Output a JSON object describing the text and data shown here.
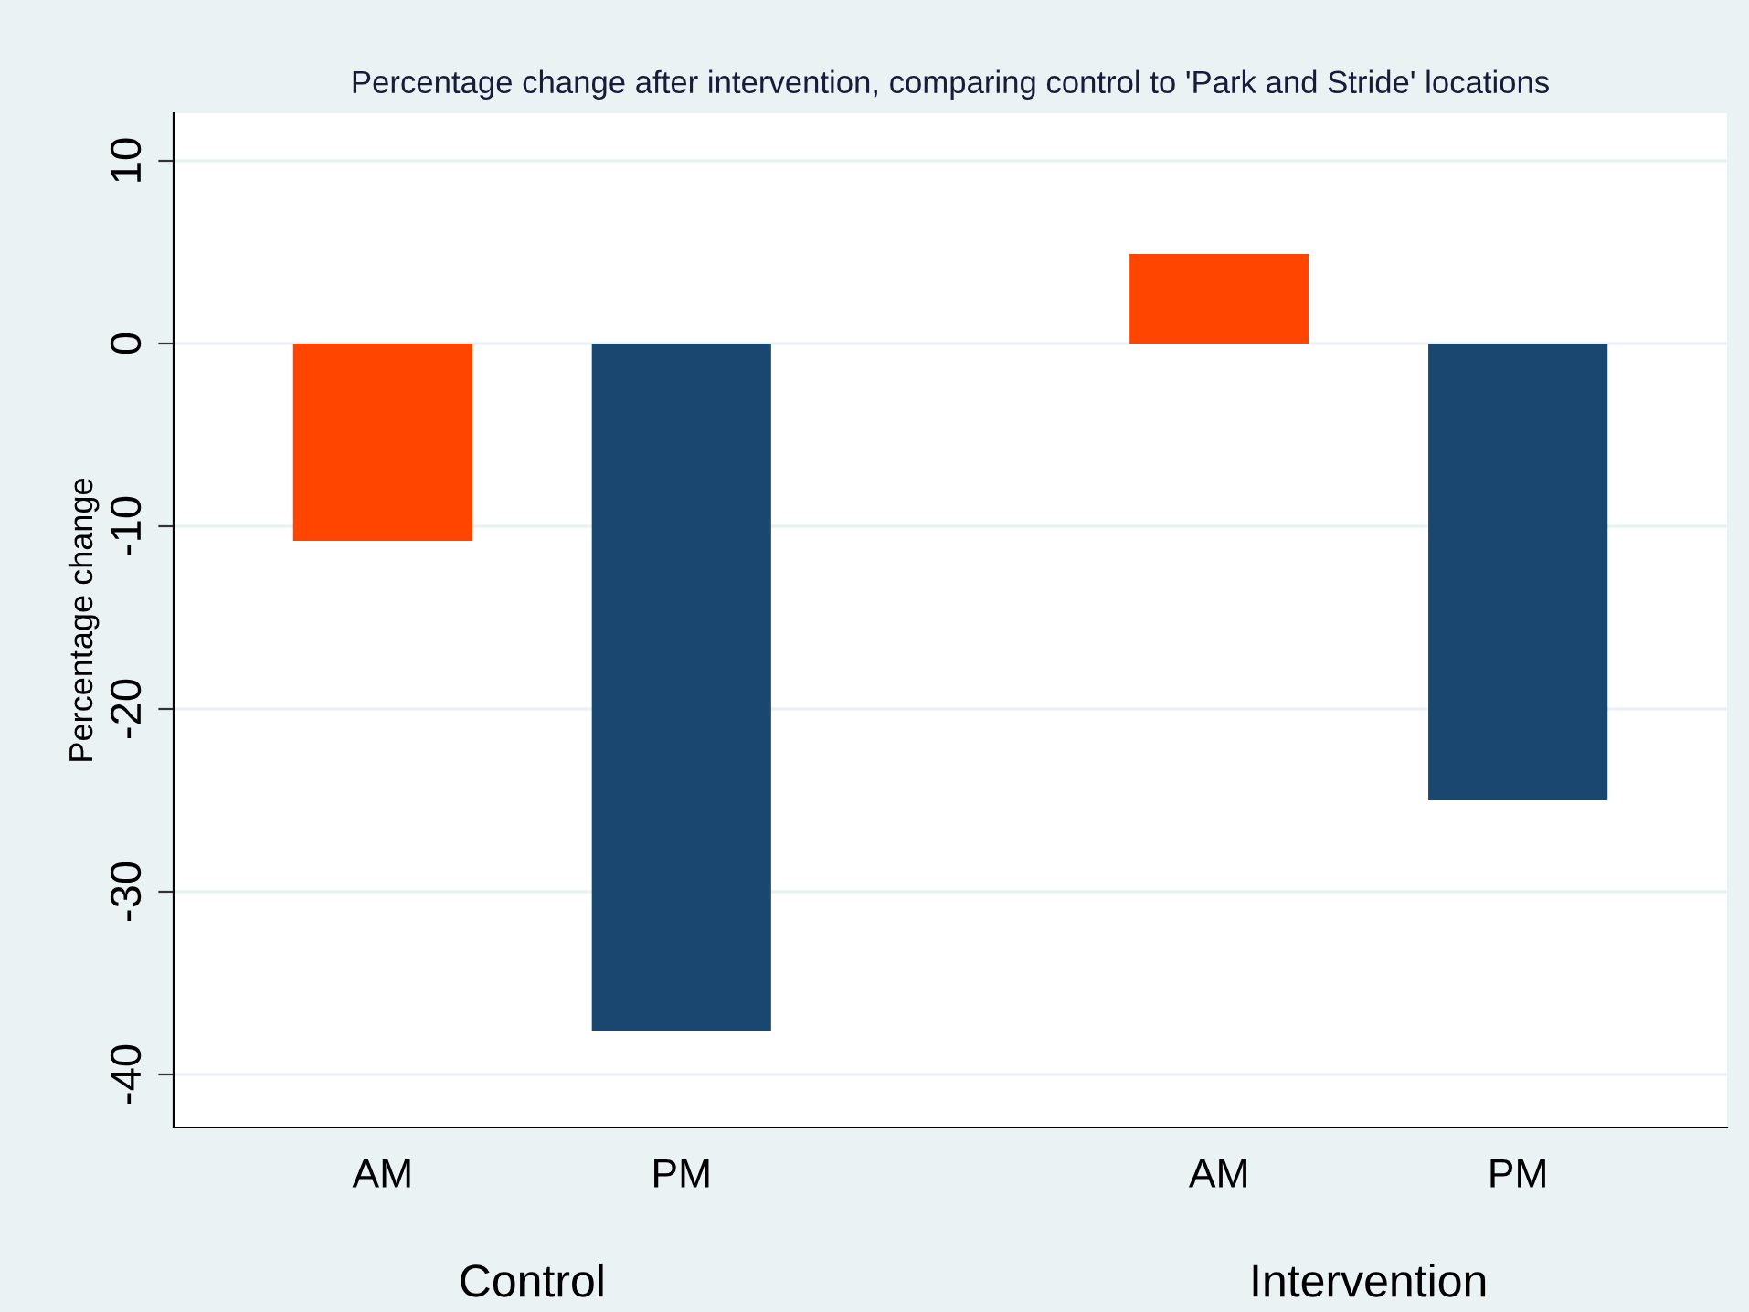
{
  "chart_data": {
    "type": "bar",
    "title": "Percentage change after intervention, comparing control to 'Park and Stride' locations",
    "ylabel": "Percentage change",
    "categories": [
      "AM",
      "PM",
      "AM",
      "PM"
    ],
    "values": [
      -10.8,
      -37.6,
      4.9,
      -25.0
    ],
    "colors": [
      "#ff4500",
      "#1a476f",
      "#ff4500",
      "#1a476f"
    ],
    "annotations": [
      "Control",
      "Intervention"
    ],
    "ylim": [
      -42.9,
      12.6
    ],
    "yticks": [
      -40,
      -30,
      -20,
      -10,
      0,
      10
    ],
    "grid": "y"
  }
}
